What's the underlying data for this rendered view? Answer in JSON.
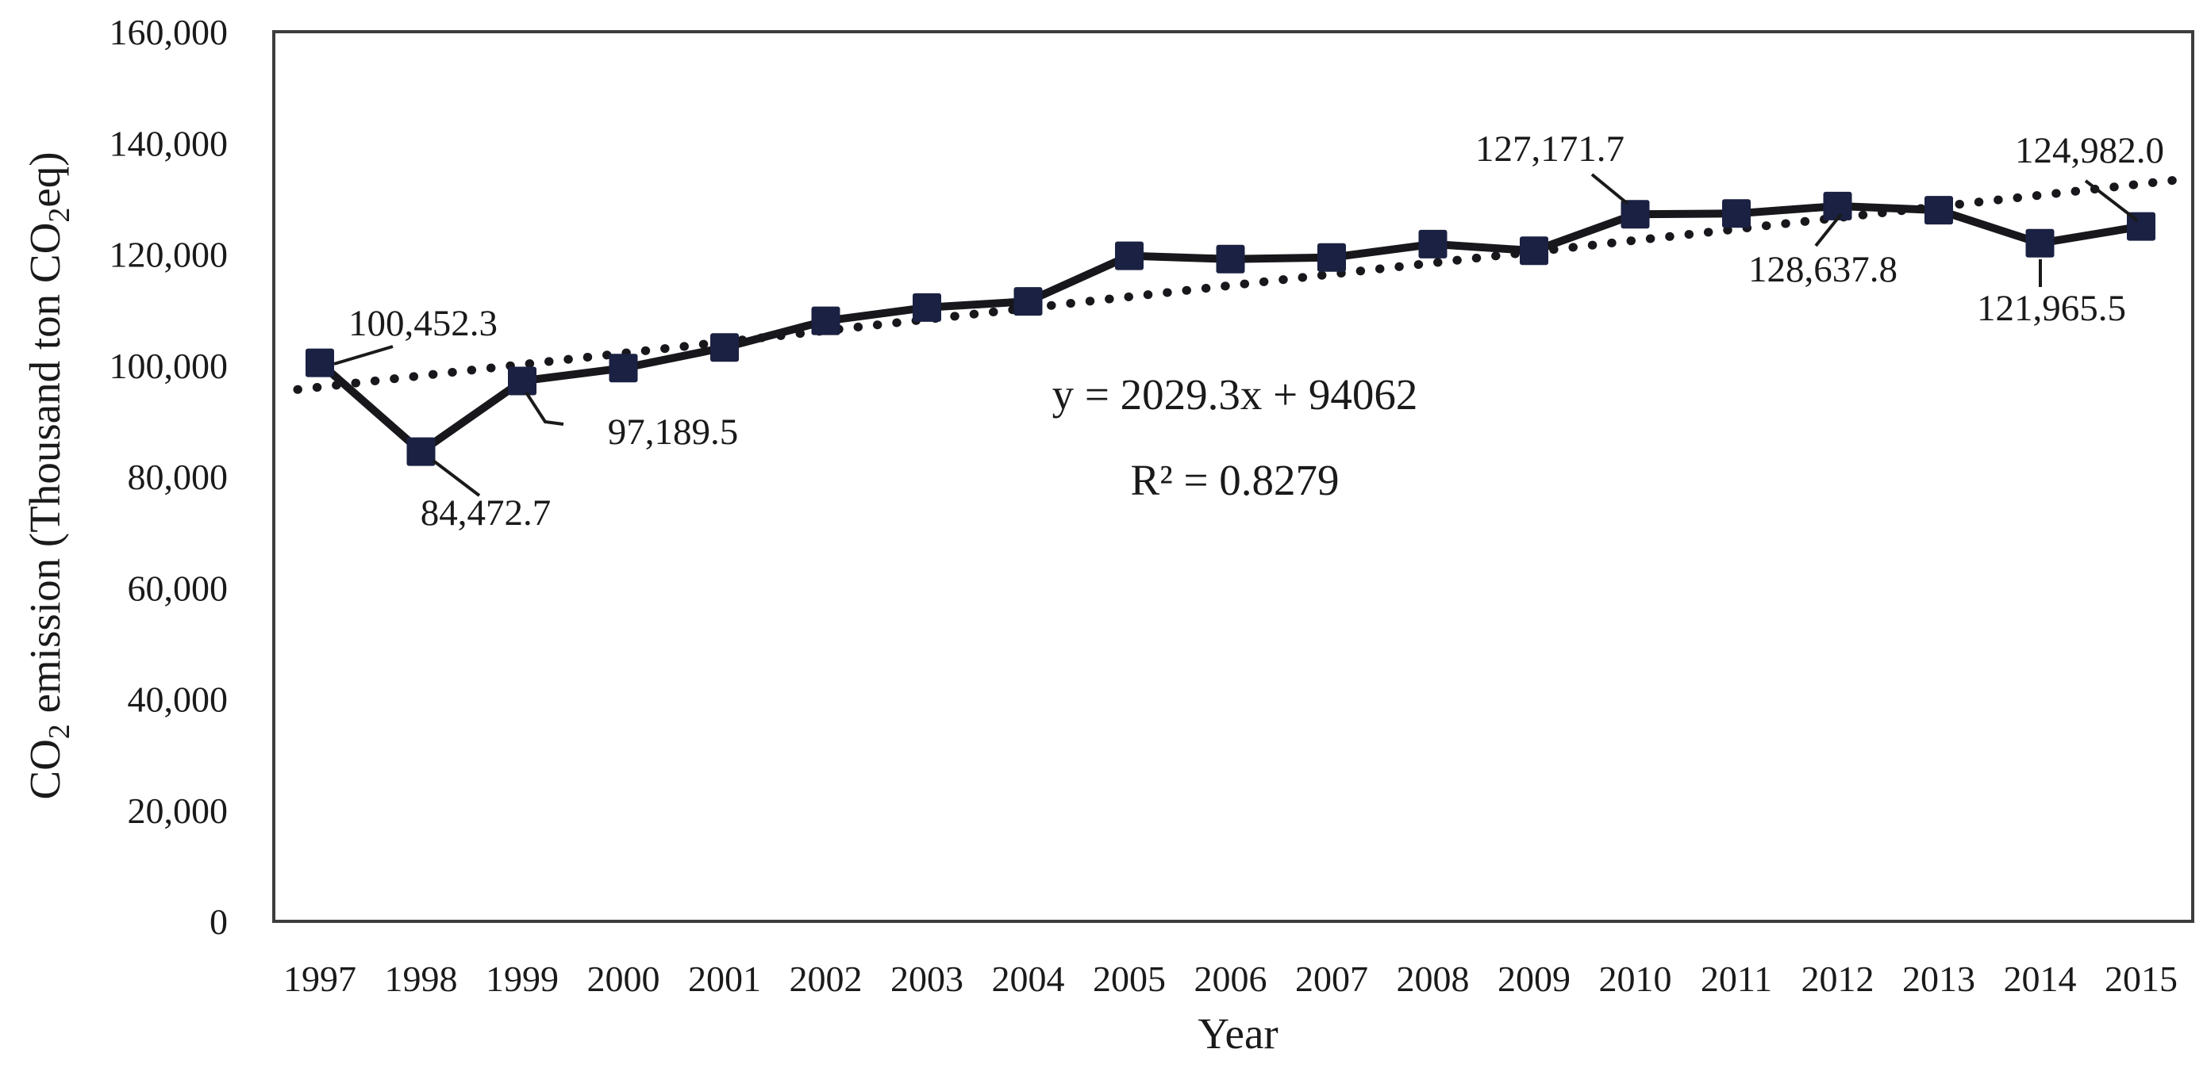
{
  "colors": {
    "marker": "#1b2142",
    "line": "#17171c",
    "trendline": "#17171c",
    "text": "#1a1a1a",
    "plot_border": "#3d3d3d",
    "background": "#ffffff"
  },
  "chart_data": {
    "type": "line",
    "title": "",
    "xlabel": "Year",
    "ylabel_plain": "CO2 emission (Thousand ton CO2eq)",
    "ylabel_segments": [
      {
        "t": "CO",
        "sub": false
      },
      {
        "t": "2",
        "sub": true
      },
      {
        "t": " emission (Thousand ton CO",
        "sub": false
      },
      {
        "t": "2",
        "sub": true
      },
      {
        "t": "eq)",
        "sub": false
      }
    ],
    "ylim": [
      0,
      160000
    ],
    "ytick_interval": 20000,
    "ytick_labels": [
      "0",
      "20,000",
      "40,000",
      "60,000",
      "80,000",
      "100,000",
      "120,000",
      "140,000",
      "160,000"
    ],
    "grid": false,
    "legend": null,
    "x": [
      1997,
      1998,
      1999,
      2000,
      2001,
      2002,
      2003,
      2004,
      2005,
      2006,
      2007,
      2008,
      2009,
      2010,
      2011,
      2012,
      2013,
      2014,
      2015
    ],
    "series": [
      {
        "name": "CO2 emission",
        "values": [
          100452.3,
          84472.7,
          97189.5,
          99500,
          103200,
          108000,
          110400,
          111500,
          119700,
          119100,
          119400,
          121800,
          120600,
          127171.7,
          127300,
          128637.8,
          127900,
          121965.5,
          124982.0
        ]
      }
    ],
    "point_labels": [
      {
        "year": 1997,
        "text": "100,452.3"
      },
      {
        "year": 1998,
        "text": "84,472.7"
      },
      {
        "year": 1999,
        "text": "97,189.5"
      },
      {
        "year": 2010,
        "text": "127,171.7"
      },
      {
        "year": 2012,
        "text": "128,637.8"
      },
      {
        "year": 2014,
        "text": "121,965.5"
      },
      {
        "year": 2015,
        "text": "124,982.0"
      }
    ],
    "trendline": {
      "equation_text": "y = 2029.3x + 94062",
      "r2_text": "R² = 0.8279",
      "slope": 2029.3,
      "intercept": 94062,
      "x_origin_year": 1996,
      "style": "dotted"
    }
  }
}
